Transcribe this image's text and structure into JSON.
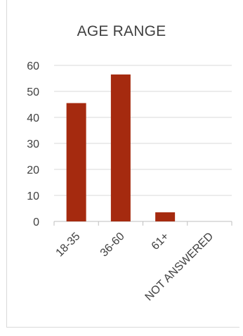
{
  "chart_data": {
    "type": "bar",
    "title": "AGE RANGE",
    "categories": [
      "18-35",
      "36-60",
      "61+",
      "NOT ANSWERED"
    ],
    "values": [
      45.5,
      56.5,
      3.5,
      0
    ],
    "ylim": [
      0,
      60
    ],
    "yticks": [
      0,
      10,
      20,
      30,
      40,
      50,
      60
    ],
    "bar_color": "#a52a0f",
    "grid": true,
    "legend": "none"
  }
}
